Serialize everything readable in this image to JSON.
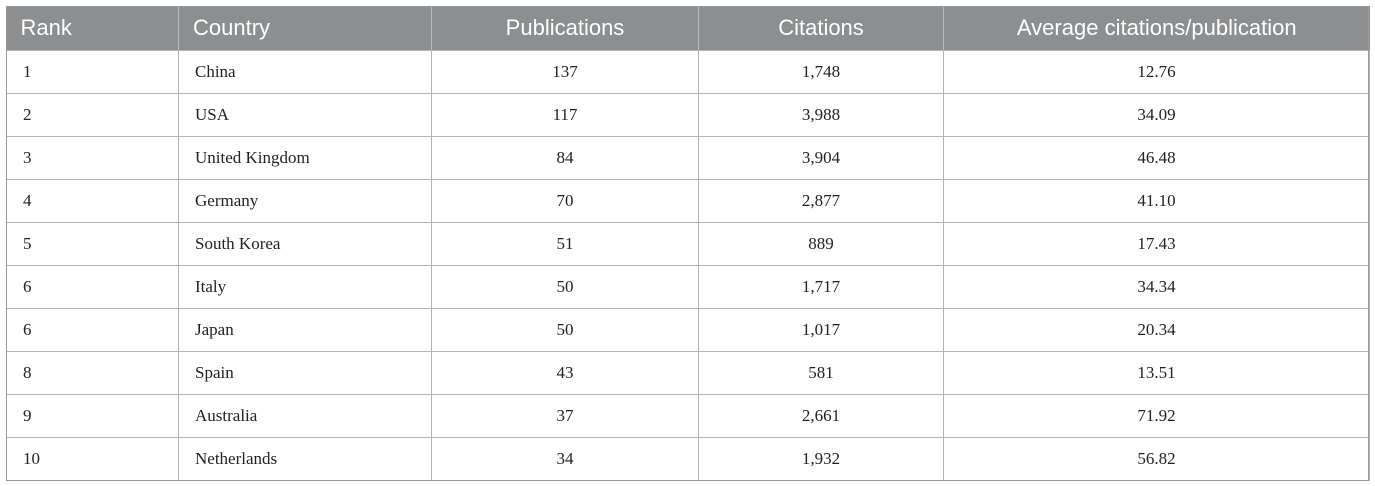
{
  "table": {
    "headers": [
      "Rank",
      "Country",
      "Publications",
      "Citations",
      "Average citations/publication"
    ],
    "rows": [
      [
        "1",
        "China",
        "137",
        "1,748",
        "12.76"
      ],
      [
        "2",
        "USA",
        "117",
        "3,988",
        "34.09"
      ],
      [
        "3",
        "United Kingdom",
        "84",
        "3,904",
        "46.48"
      ],
      [
        "4",
        "Germany",
        "70",
        "2,877",
        "41.10"
      ],
      [
        "5",
        "South Korea",
        "51",
        "889",
        "17.43"
      ],
      [
        "6",
        "Italy",
        "50",
        "1,717",
        "34.34"
      ],
      [
        "6",
        "Japan",
        "50",
        "1,017",
        "20.34"
      ],
      [
        "8",
        "Spain",
        "43",
        "581",
        "13.51"
      ],
      [
        "9",
        "Australia",
        "37",
        "2,661",
        "71.92"
      ],
      [
        "10",
        "Netherlands",
        "34",
        "1,932",
        "56.82"
      ]
    ]
  },
  "colors": {
    "header_background": "#8c8e8f",
    "header_text": "#ffffff",
    "grid_line": "#b4b4b4"
  }
}
